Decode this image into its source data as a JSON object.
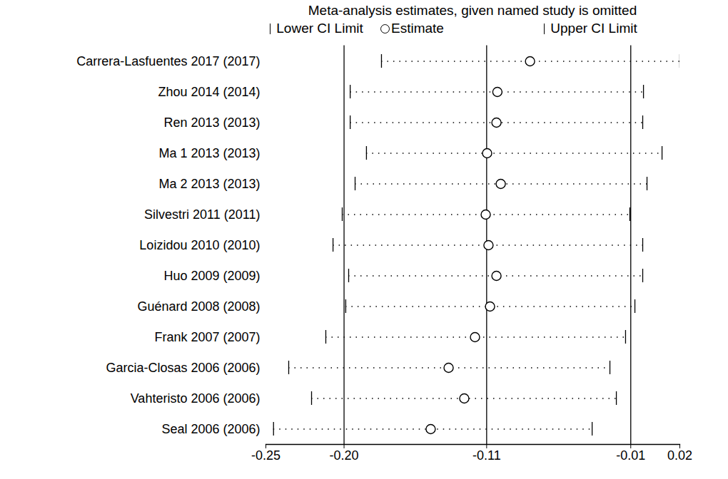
{
  "chart_data": {
    "type": "forest",
    "title": "Meta-analysis estimates, given named study is omitted",
    "categories": [
      "Carrera-Lasfuentes 2017 (2017)",
      "Zhou 2014 (2014)",
      "Ren 2013 (2013)",
      "Ma 1 2013 (2013)",
      "Ma 2 2013 (2013)",
      "Silvestri 2011 (2011)",
      "Loizidou 2010 (2010)",
      "Huo 2009 (2009)",
      "Guénard 2008 (2008)",
      "Frank 2007 (2007)",
      "Garcia-Closas 2006 (2006)",
      "Vahteristo 2006 (2006)",
      "Seal 2006 (2006)"
    ],
    "series": [
      {
        "name": "Lower CI Limit",
        "color": "#000000",
        "marker": "tick",
        "values": [
          -0.1746,
          -0.195,
          -0.195,
          -0.1844,
          -0.1918,
          -0.2002,
          -0.2062,
          -0.196,
          -0.1979,
          -0.2109,
          -0.2351,
          -0.2202,
          -0.245
        ]
      },
      {
        "name": "Estimate",
        "color": "#000000",
        "marker": "circle",
        "values": [
          -0.0777,
          -0.099,
          -0.0996,
          -0.1057,
          -0.0968,
          -0.1066,
          -0.1048,
          -0.0996,
          -0.1038,
          -0.1136,
          -0.1308,
          -0.1206,
          -0.1425
        ]
      },
      {
        "name": "Upper CI Limit",
        "color": "#000000",
        "marker": "tick",
        "values": [
          0.02,
          -0.0037,
          -0.0042,
          0.0084,
          -0.0014,
          -0.0126,
          -0.0042,
          -0.0042,
          -0.0093,
          -0.0154,
          -0.0256,
          -0.0214,
          -0.0372
        ]
      }
    ],
    "line_style": "dotted",
    "reference_lines": [
      -0.199,
      -0.106,
      -0.012
    ],
    "xlim": [
      -0.25,
      0.02
    ],
    "xticks": [
      -0.25,
      {
        "value": -0.199,
        "label": "-0.20"
      },
      {
        "value": -0.106,
        "label": "-0.11"
      },
      {
        "value": -0.012,
        "label": "-0.01"
      },
      0.02
    ]
  }
}
